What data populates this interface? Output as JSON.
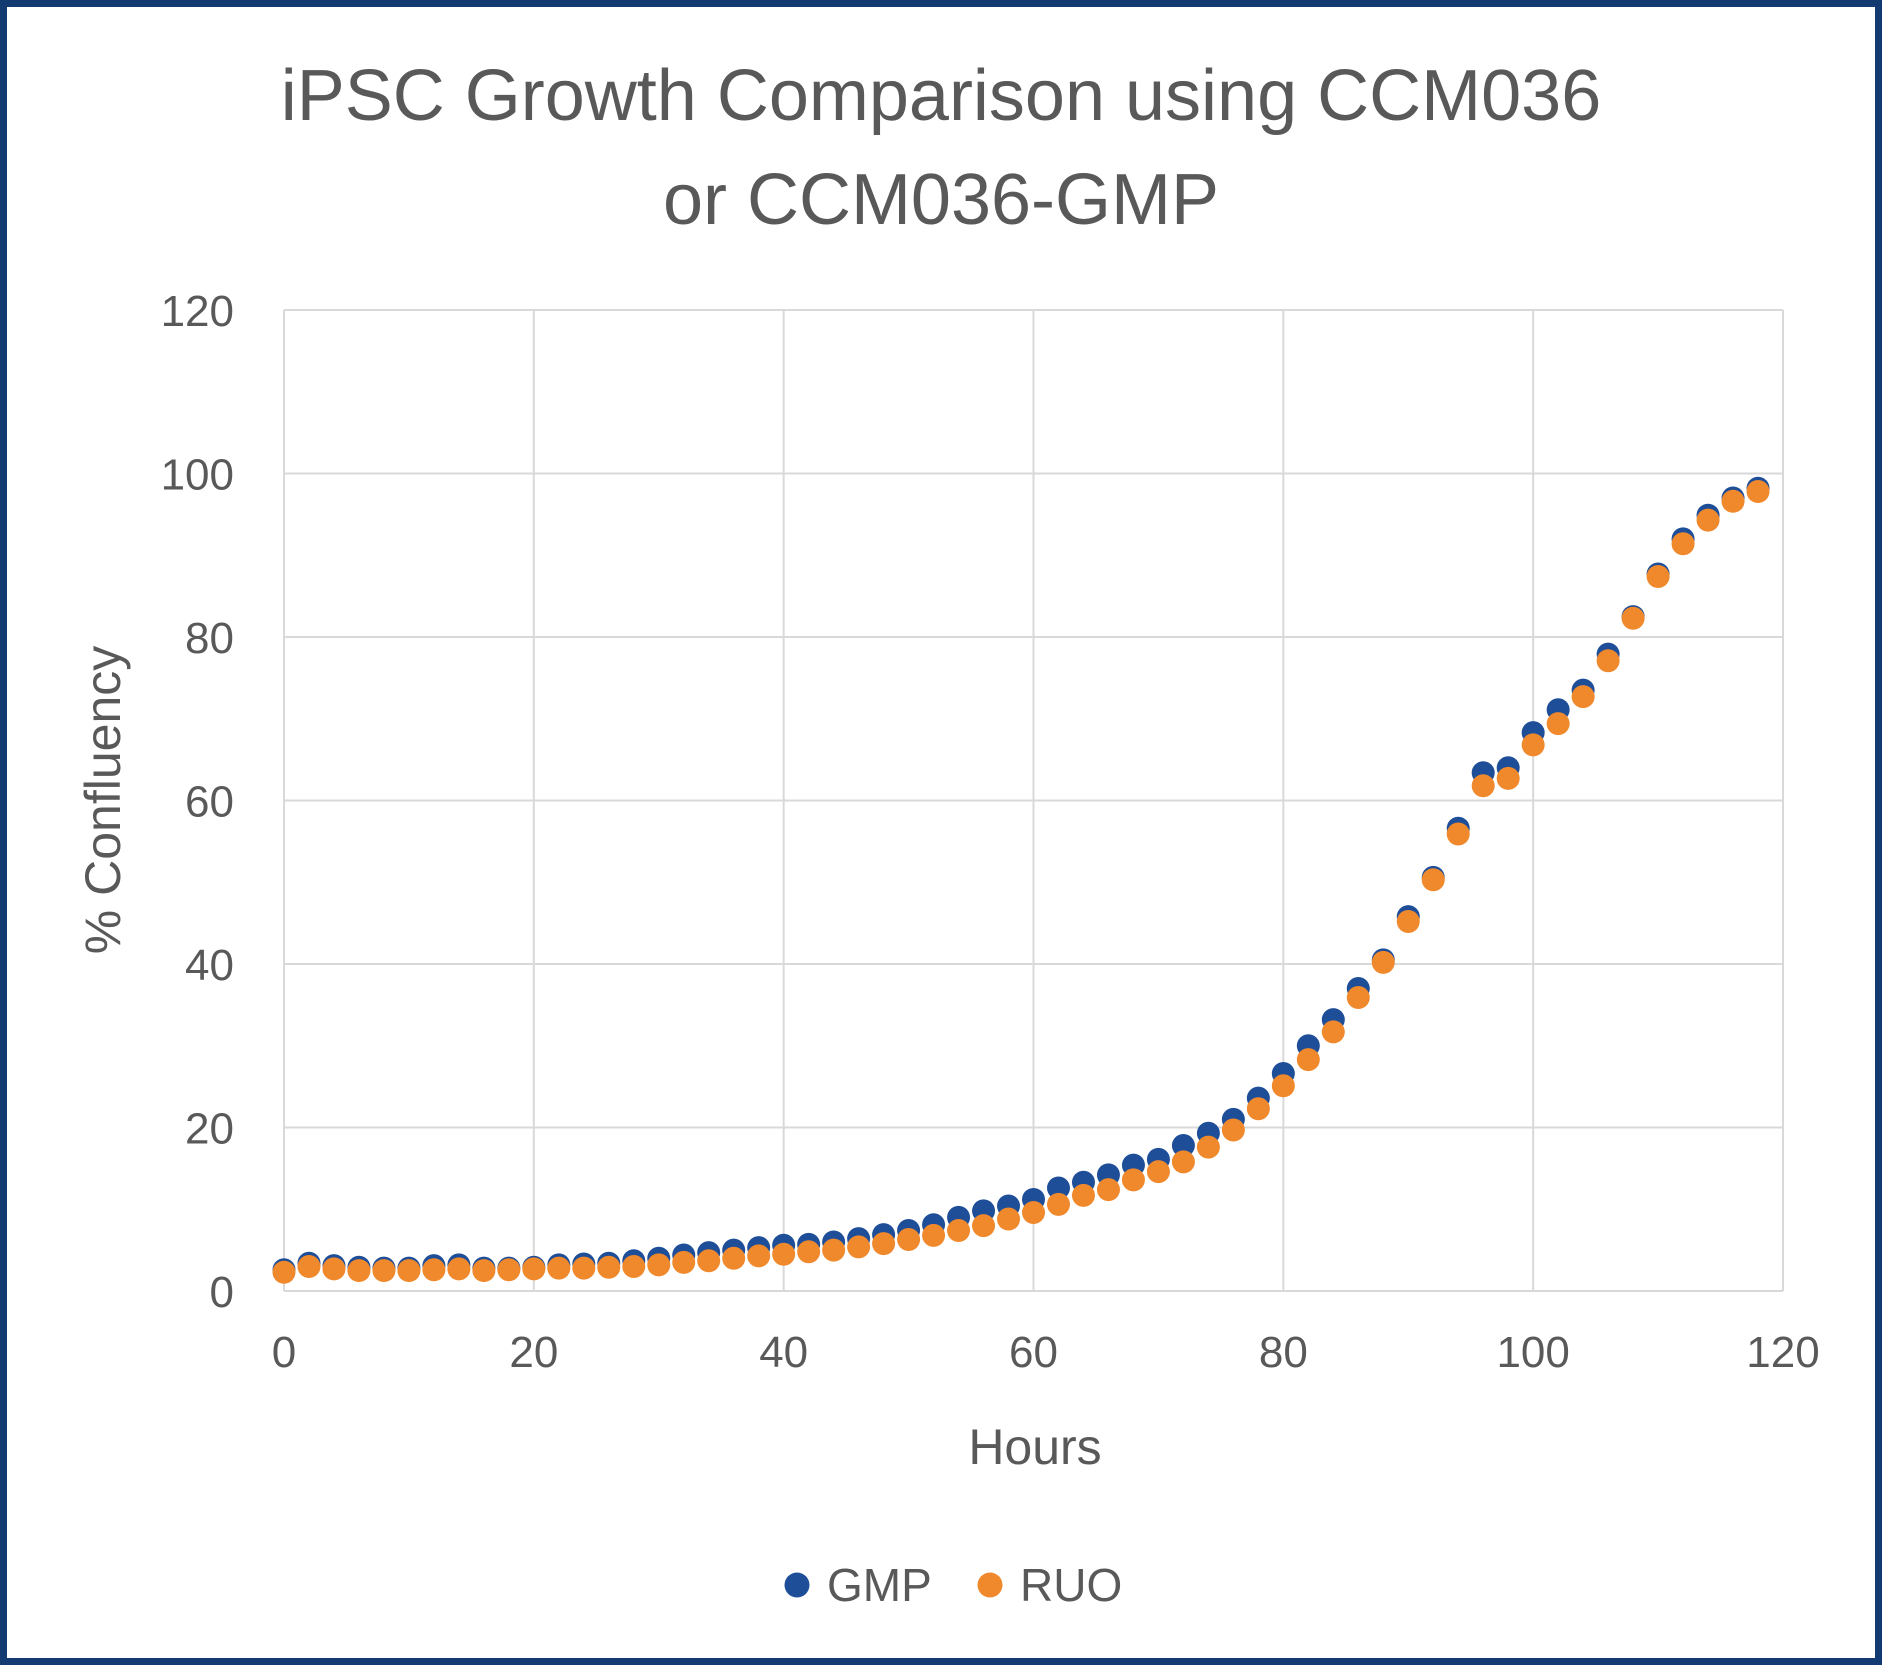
{
  "colors": {
    "frame": "#143a72",
    "text": "#595959",
    "grid": "#d9d9d9",
    "gmp": "#1f4e98",
    "ruo": "#f0882c"
  },
  "chart_data": {
    "type": "scatter",
    "title_lines": [
      "iPSC Growth Comparison using CCM036",
      "or CCM036-GMP"
    ],
    "xlabel": "Hours",
    "ylabel": "% Confluency",
    "xlim": [
      0,
      120
    ],
    "ylim": [
      0,
      120
    ],
    "xticks": [
      0,
      20,
      40,
      60,
      80,
      100,
      120
    ],
    "yticks": [
      0,
      20,
      40,
      60,
      80,
      100,
      120
    ],
    "grid": true,
    "legend_position": "bottom",
    "x": [
      0,
      2,
      4,
      6,
      8,
      10,
      12,
      14,
      16,
      18,
      20,
      22,
      24,
      26,
      28,
      30,
      32,
      34,
      36,
      38,
      40,
      42,
      44,
      46,
      48,
      50,
      52,
      54,
      56,
      58,
      60,
      62,
      64,
      66,
      68,
      70,
      72,
      74,
      76,
      78,
      80,
      82,
      84,
      86,
      88,
      90,
      92,
      94,
      96,
      98,
      100,
      102,
      104,
      106,
      108,
      110,
      112,
      114,
      116,
      118
    ],
    "series": [
      {
        "name": "GMP",
        "color": "#1f4e98",
        "values": [
          2.6,
          3.4,
          3.1,
          2.9,
          2.8,
          2.8,
          3.1,
          3.2,
          2.8,
          2.8,
          2.9,
          3.2,
          3.3,
          3.4,
          3.7,
          4.0,
          4.4,
          4.7,
          5.0,
          5.3,
          5.6,
          5.7,
          6.0,
          6.4,
          6.9,
          7.4,
          8.1,
          9.0,
          9.8,
          10.4,
          11.2,
          12.6,
          13.3,
          14.2,
          15.4,
          16.1,
          17.8,
          19.3,
          21.0,
          23.6,
          26.6,
          30.0,
          33.2,
          37.0,
          40.5,
          45.8,
          50.6,
          56.6,
          63.4,
          64.0,
          68.3,
          71.1,
          73.5,
          77.9,
          82.5,
          87.7,
          92.0,
          94.9,
          97.0,
          98.2
        ]
      },
      {
        "name": "RUO",
        "color": "#f0882c",
        "values": [
          2.3,
          3.0,
          2.7,
          2.5,
          2.5,
          2.5,
          2.6,
          2.7,
          2.5,
          2.6,
          2.7,
          2.8,
          2.8,
          2.9,
          3.0,
          3.2,
          3.5,
          3.7,
          4.0,
          4.3,
          4.5,
          4.8,
          5.0,
          5.4,
          5.8,
          6.3,
          6.8,
          7.4,
          8.0,
          8.8,
          9.6,
          10.6,
          11.7,
          12.4,
          13.6,
          14.6,
          15.8,
          17.6,
          19.7,
          22.3,
          25.1,
          28.3,
          31.7,
          35.9,
          40.2,
          45.2,
          50.3,
          55.9,
          61.8,
          62.7,
          66.8,
          69.4,
          72.7,
          77.1,
          82.3,
          87.4,
          91.4,
          94.3,
          96.6,
          97.8
        ]
      }
    ]
  }
}
